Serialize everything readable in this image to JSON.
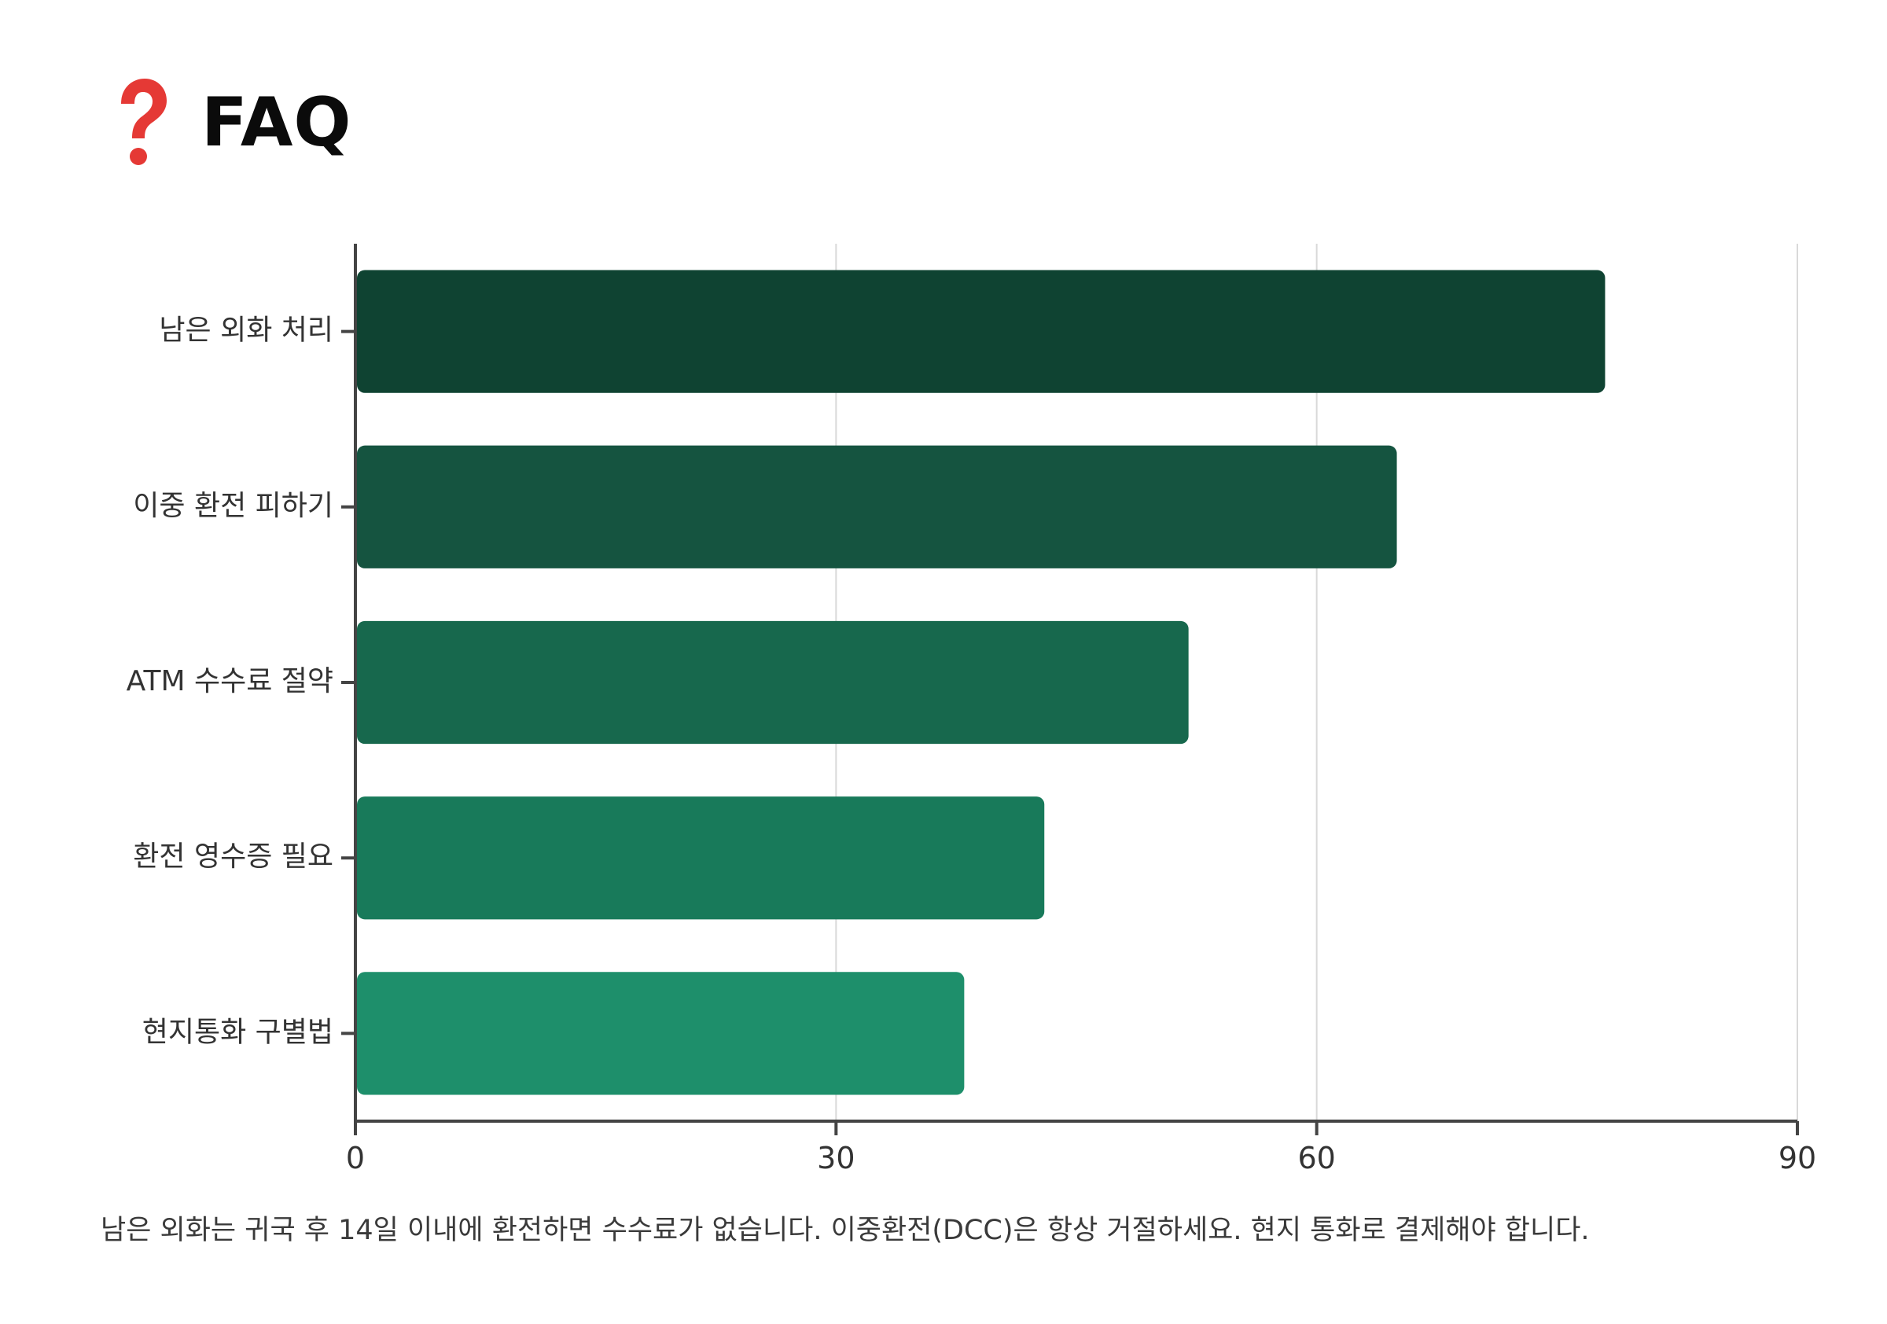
{
  "header": {
    "icon": "question-mark-icon",
    "title": "FAQ"
  },
  "colors": {
    "bars": [
      "#0f4332",
      "#155440",
      "#17684d",
      "#187a5a",
      "#1e8f6b"
    ],
    "grid": "#d9d9d9",
    "axis": "#444444",
    "label": "#333333",
    "icon": "#e53935"
  },
  "chart_data": {
    "type": "bar",
    "orientation": "horizontal",
    "title": "",
    "xlabel": "",
    "ylabel": "",
    "categories": [
      "남은 외화 처리",
      "이중 환전 피하기",
      "ATM 수수료 절약",
      "환전 영수증 필요",
      "현지통화 구별법"
    ],
    "values": [
      78,
      65,
      52,
      43,
      38
    ],
    "xlim": [
      0,
      90
    ],
    "xticks": [
      0,
      30,
      60,
      90
    ],
    "grid": "vertical",
    "legend": "none"
  },
  "footnote": "남은 외화는 귀국 후 14일 이내에 환전하면 수수료가 없습니다. 이중환전(DCC)은 항상 거절하세요. 현지 통화로 결제해야 합니다."
}
